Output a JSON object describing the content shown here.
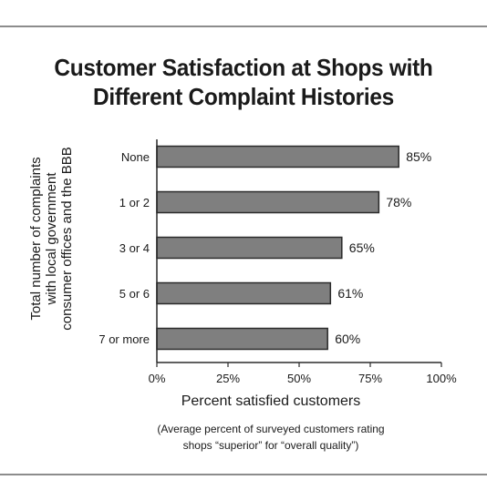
{
  "chart_data": {
    "type": "bar",
    "orientation": "horizontal",
    "title_lines": [
      "Customer Satisfaction at Shops with",
      "Different Complaint Histories"
    ],
    "categories": [
      "None",
      "1 or 2",
      "3 or 4",
      "5 or 6",
      "7 or more"
    ],
    "values": [
      85,
      78,
      65,
      61,
      60
    ],
    "value_labels": [
      "85%",
      "78%",
      "65%",
      "61%",
      "60%"
    ],
    "xlabel": "Percent satisfied customers",
    "xlabel_note_lines": [
      "(Average percent of surveyed customers rating",
      "shops “superior” for “overall quality”)"
    ],
    "ylabel_lines": [
      "Total number of complaints",
      "with local government",
      "consumer offices and the BBB"
    ],
    "xlim": [
      0,
      100
    ],
    "x_ticks": [
      0,
      25,
      50,
      75,
      100
    ],
    "x_tick_labels": [
      "0%",
      "25%",
      "50%",
      "75%",
      "100%"
    ],
    "grid": false,
    "legend": "none",
    "colors": {
      "bar": "#7f7f7f",
      "bar_edge": "#2b2b2b",
      "axis": "#2b2b2b",
      "text": "#1a1a1a",
      "rule": "#8c8c8c"
    }
  }
}
